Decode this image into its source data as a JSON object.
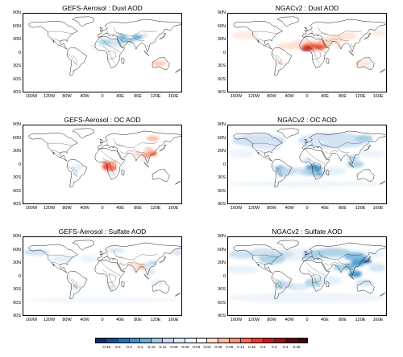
{
  "panels": [
    {
      "title": "GEFS-Aerosol : Dust AOD",
      "pattern": "dust-diff"
    },
    {
      "title": "NGACv2 : Dust AOD",
      "pattern": "dust-ngac"
    },
    {
      "title": "GEFS-Aerosol : OC AOD",
      "pattern": "oc-diff"
    },
    {
      "title": "NGACv2 : OC AOD",
      "pattern": "oc-ngac"
    },
    {
      "title": "GEFS-Aerosol : Sulfate AOD",
      "pattern": "sulfate-diff"
    },
    {
      "title": "NGACv2 : Sulfate AOD",
      "pattern": "sulfate-ngac"
    }
  ],
  "lat_labels": [
    "90N",
    "60N",
    "30N",
    "0",
    "30S",
    "60S",
    "90S"
  ],
  "lon_labels": [
    "160W",
    "120W",
    "80W",
    "40W",
    "0",
    "40E",
    "80E",
    "120E",
    "160E"
  ],
  "colorbar": {
    "labels": [
      "-0.45",
      "-0.4",
      "-0.3",
      "-0.2",
      "-0.15",
      "-0.12",
      "-0.09",
      "-0.06",
      "-0.03",
      "0.03",
      "0.06",
      "0.09",
      "0.12",
      "0.15",
      "0.2",
      "0.3",
      "0.4",
      "0.45"
    ],
    "colors": [
      "#08306b",
      "#08519c",
      "#2171b5",
      "#4292c6",
      "#6baed6",
      "#9ecae1",
      "#c6dbef",
      "#deebf7",
      "#eef5fb",
      "#ffffff",
      "#fee0d2",
      "#fcbba1",
      "#fc9272",
      "#fb6a4a",
      "#ef3b2c",
      "#cb181d",
      "#a50f15",
      "#67000d",
      "#4a0008"
    ]
  }
}
